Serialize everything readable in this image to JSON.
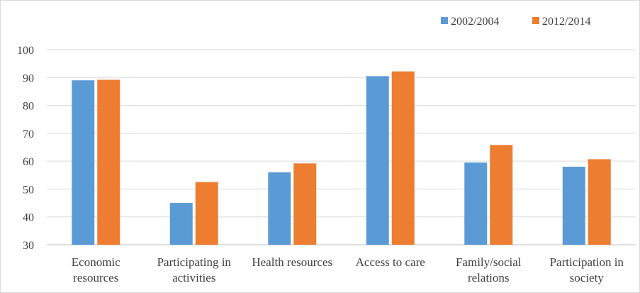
{
  "chart_data": {
    "type": "bar",
    "title": "",
    "xlabel": "",
    "ylabel": "",
    "ylim": [
      30,
      100
    ],
    "yticks": [
      30,
      40,
      50,
      60,
      70,
      80,
      90,
      100
    ],
    "grid": true,
    "legend_position": "top-right",
    "categories": [
      [
        "Economic",
        "resources"
      ],
      [
        "Participating in",
        "activities"
      ],
      [
        "Health resources"
      ],
      [
        "Access to care"
      ],
      [
        "Family/social",
        "relations"
      ],
      [
        "Participation in",
        "society"
      ]
    ],
    "series": [
      {
        "name": "2002/2004",
        "color": "#5b9bd5",
        "values": [
          89,
          45,
          56,
          90.5,
          59.5,
          58
        ]
      },
      {
        "name": "2012/2014",
        "color": "#ed7d31",
        "values": [
          89.2,
          52.5,
          59.2,
          92.2,
          65.8,
          60.7
        ]
      }
    ]
  }
}
